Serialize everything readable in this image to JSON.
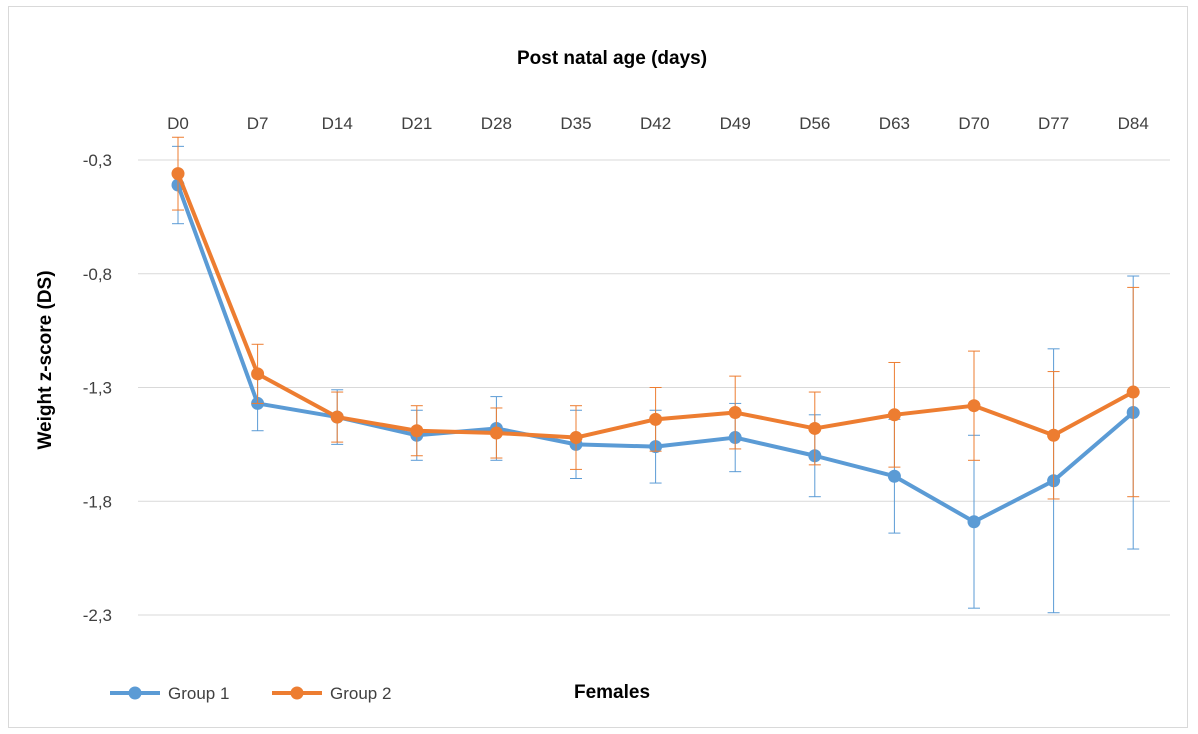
{
  "chart_data": {
    "type": "line",
    "title": "Post natal age (days)",
    "xlabel": "Females",
    "ylabel": "Weight z-score (DS)",
    "categories": [
      "D0",
      "D7",
      "D14",
      "D21",
      "D28",
      "D35",
      "D42",
      "D49",
      "D56",
      "D63",
      "D70",
      "D77",
      "D84"
    ],
    "y_ticks": [
      "-0,3",
      "-0,8",
      "-1,3",
      "-1,8",
      "-2,3"
    ],
    "ylim": [
      -2.3,
      -0.3
    ],
    "y_reversed": true,
    "x_axis_position": "top",
    "grid": true,
    "legend_position": "bottom-left",
    "series": [
      {
        "name": "Group 1",
        "color": "#5b9bd5",
        "values": [
          -0.41,
          -1.37,
          -1.43,
          -1.51,
          -1.48,
          -1.55,
          -1.56,
          -1.52,
          -1.6,
          -1.69,
          -1.89,
          -1.71,
          -1.41
        ],
        "error": [
          0.17,
          0.12,
          0.12,
          0.11,
          0.14,
          0.15,
          0.16,
          0.15,
          0.18,
          0.25,
          0.38,
          0.58,
          0.6
        ]
      },
      {
        "name": "Group 2",
        "color": "#ed7d31",
        "values": [
          -0.36,
          -1.24,
          -1.43,
          -1.49,
          -1.5,
          -1.52,
          -1.44,
          -1.41,
          -1.48,
          -1.42,
          -1.38,
          -1.51,
          -1.32
        ],
        "error": [
          0.16,
          0.13,
          0.11,
          0.11,
          0.11,
          0.14,
          0.14,
          0.16,
          0.16,
          0.23,
          0.24,
          0.28,
          0.46
        ]
      }
    ]
  }
}
